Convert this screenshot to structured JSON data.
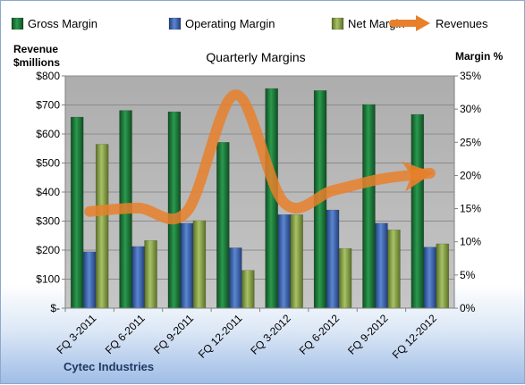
{
  "chart_data": {
    "type": "bar",
    "title": "Quarterly Margins",
    "categories": [
      "FQ 3-2011",
      "FQ 6-2011",
      "FQ 9-2011",
      "FQ 12-2011",
      "FQ 3-2012",
      "FQ 6-2012",
      "FQ 9-2012",
      "FQ 12-2012"
    ],
    "y_left_label": [
      "Revenue",
      "$millions"
    ],
    "y_right_label": "Margin %",
    "ylim_left": [
      0,
      800
    ],
    "ylim_right": [
      0,
      35
    ],
    "y_left_ticks": [
      "$-",
      "$100",
      "$200",
      "$300",
      "$400",
      "$500",
      "$600",
      "$700",
      "$800"
    ],
    "y_right_ticks": [
      "0%",
      "5%",
      "10%",
      "15%",
      "20%",
      "25%",
      "30%",
      "35%"
    ],
    "series": [
      {
        "name": "Gross Margin",
        "type": "bar",
        "axis": "right",
        "color": "#1f7a3c",
        "values": [
          28.8,
          29.8,
          29.6,
          25.0,
          33.1,
          32.8,
          30.7,
          29.2
        ]
      },
      {
        "name": "Operating Margin",
        "type": "bar",
        "axis": "right",
        "color": "#4472c4",
        "values": [
          8.5,
          9.3,
          12.8,
          9.1,
          14.1,
          14.8,
          12.8,
          9.2
        ]
      },
      {
        "name": "Net Margin",
        "type": "bar",
        "axis": "right",
        "color": "#8faa4b",
        "values": [
          24.7,
          10.2,
          13.2,
          5.7,
          14.1,
          9.0,
          11.8,
          9.7
        ]
      },
      {
        "name": "Revenues",
        "type": "line",
        "axis": "left",
        "color": "#e8802b",
        "values": [
          333,
          345,
          333,
          735,
          363,
          405,
          445,
          465
        ]
      }
    ],
    "grid": true,
    "legend_position": "top",
    "company": "Cytec Industries"
  }
}
